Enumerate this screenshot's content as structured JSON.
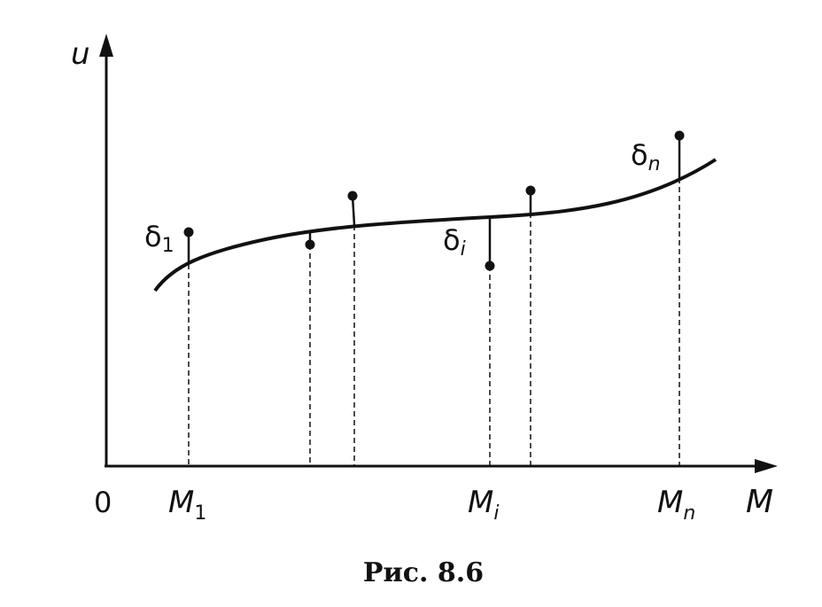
{
  "figure": {
    "caption": "Рис. 8.6",
    "axes": {
      "y_label": "u",
      "x_label": "M",
      "origin_label": "0"
    },
    "x_tick_labels": [
      {
        "letter": "M",
        "sub": "1"
      },
      {
        "letter": "M",
        "sub": "i"
      },
      {
        "letter": "M",
        "sub": "n"
      }
    ],
    "deviation_labels": [
      {
        "letter": "δ",
        "sub": "1"
      },
      {
        "letter": "δ",
        "sub": "i"
      },
      {
        "letter": "δ",
        "sub": "n"
      }
    ]
  }
}
